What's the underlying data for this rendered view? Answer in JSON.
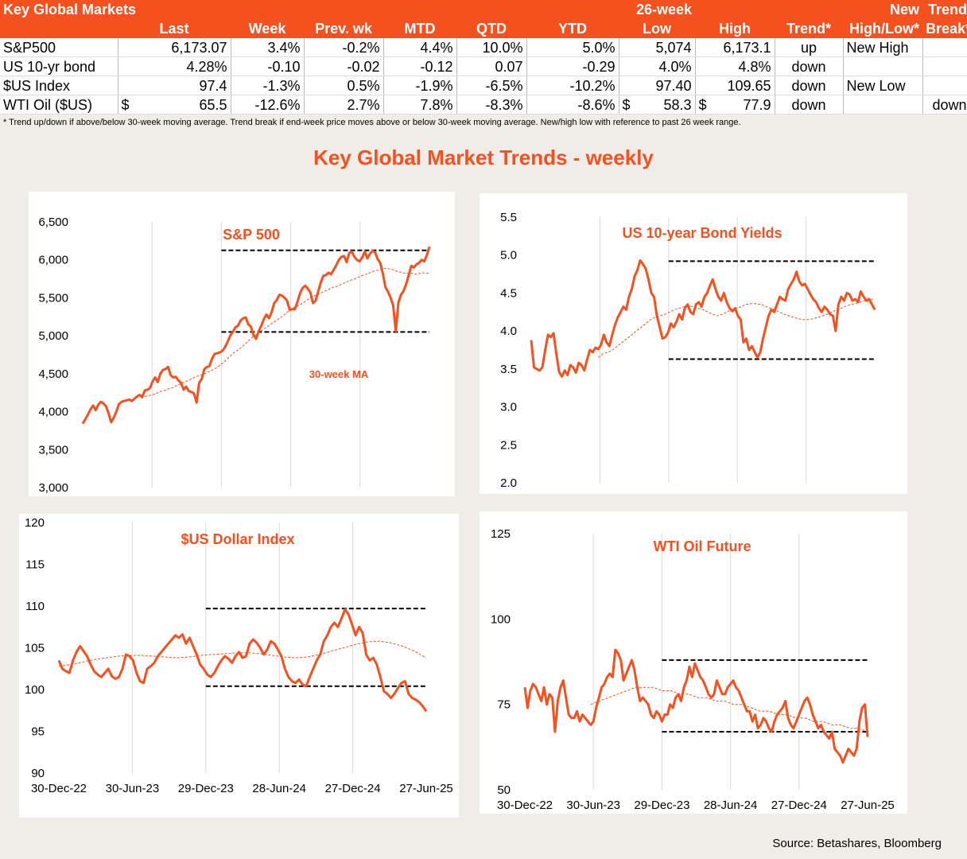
{
  "table": {
    "header_row1": [
      "Key Global Markets",
      "",
      "",
      "",
      "",
      "",
      "",
      "26-week",
      "",
      "",
      "New",
      "Trend"
    ],
    "header_row2": [
      "",
      "Last",
      "Week",
      "Prev. wk",
      "MTD",
      "QTD",
      "YTD",
      "Low",
      "High",
      "Trend*",
      "High/Low*",
      "Break*"
    ],
    "rows": [
      {
        "name": "S&P500",
        "cur_last": "",
        "last": "6,173.07",
        "week": "3.4%",
        "prev": "-0.2%",
        "mtd": "4.4%",
        "qtd": "10.0%",
        "ytd": "5.0%",
        "cur_low": "",
        "low": "5,074",
        "cur_high": "",
        "high": "6,173.1",
        "trend": "up",
        "hl": "New High",
        "brk": ""
      },
      {
        "name": "US 10-yr bond",
        "cur_last": "",
        "last": "4.28%",
        "week": "-0.10",
        "prev": "-0.02",
        "mtd": "-0.12",
        "qtd": "0.07",
        "ytd": "-0.29",
        "cur_low": "",
        "low": "4.0%",
        "cur_high": "",
        "high": "4.8%",
        "trend": "down",
        "hl": "",
        "brk": ""
      },
      {
        "name": "$US Index",
        "cur_last": "",
        "last": "97.4",
        "week": "-1.3%",
        "prev": "0.5%",
        "mtd": "-1.9%",
        "qtd": "-6.5%",
        "ytd": "-10.2%",
        "cur_low": "",
        "low": "97.40",
        "cur_high": "",
        "high": "109.65",
        "trend": "down",
        "hl": "New Low",
        "brk": ""
      },
      {
        "name": "WTI Oil ($US)",
        "cur_last": "$",
        "last": "65.5",
        "week": "-12.6%",
        "prev": "2.7%",
        "mtd": "7.8%",
        "qtd": "-8.3%",
        "ytd": "-8.6%",
        "cur_low": "$",
        "low": "58.3",
        "cur_high": "$",
        "high": "77.9",
        "trend": "down",
        "hl": "",
        "brk": "down"
      }
    ]
  },
  "footnote": "* Trend up/down if above/below 30-week moving average. Trend break if end-week price moves above or below 30-week moving average.  New/high low with reference to past 26 week range.",
  "main_title": "Key Global Market Trends - weekly",
  "source": "Source: Betashares, Bloomberg",
  "colors": {
    "accent": "#f4511e",
    "ma": "#f4511e",
    "band": "#000000"
  },
  "chart_data": [
    {
      "type": "line",
      "title": "S&P 500",
      "annotation": "30-week MA",
      "ylim": [
        3000,
        6500
      ],
      "yticks": [
        "3,000",
        "3,500",
        "4,000",
        "4,500",
        "5,000",
        "5,500",
        "6,000",
        "6,500"
      ],
      "xticks": [],
      "band": {
        "high": 6125,
        "low": 5050,
        "start": 0.4
      },
      "series": [
        {
          "values": [
            3840,
            3900,
            3960,
            4030,
            4080,
            4020,
            4090,
            4130,
            4110,
            4070,
            3980,
            3860,
            3920,
            4000,
            4100,
            4130,
            4140,
            4150,
            4160,
            4140,
            4170,
            4200,
            4220,
            4190,
            4280,
            4290,
            4310,
            4400,
            4450,
            4390,
            4500,
            4550,
            4560,
            4590,
            4480,
            4450,
            4460,
            4410,
            4380,
            4290,
            4330,
            4270,
            4260,
            4240,
            4120,
            4380,
            4430,
            4560,
            4590,
            4600,
            4700,
            4760,
            4770,
            4780,
            4800,
            4850,
            4920,
            5000,
            5050,
            5110,
            5130,
            5200,
            5230,
            5240,
            5150,
            5120,
            5010,
            4960,
            5060,
            5130,
            5220,
            5280,
            5230,
            5310,
            5430,
            5470,
            5540,
            5530,
            5500,
            5460,
            5340,
            5350,
            5350,
            5450,
            5560,
            5630,
            5660,
            5620,
            5570,
            5430,
            5460,
            5580,
            5700,
            5790,
            5800,
            5830,
            5810,
            5870,
            5930,
            6000,
            6040,
            6050,
            5970,
            6090,
            6110,
            6040,
            6000,
            5980,
            6030,
            6110,
            6020,
            6080,
            6120,
            6100,
            6010,
            5960,
            5820,
            5640,
            5580,
            5500,
            5400,
            5060,
            5440,
            5540,
            5590,
            5680,
            5800,
            5920,
            5900,
            5940,
            5960,
            6000,
            5980,
            6060,
            6173
          ]
        },
        {
          "values": [
            4200,
            4210,
            4220,
            4230,
            4250,
            4270,
            4280,
            4300,
            4310,
            4330,
            4350,
            4370,
            4390,
            4410,
            4430,
            4450,
            4470,
            4480,
            4500,
            4520,
            4540,
            4560,
            4590,
            4620,
            4660,
            4700,
            4740,
            4780,
            4810,
            4840,
            4880,
            4920,
            4960,
            5000,
            5030,
            5060,
            5090,
            5120,
            5150,
            5180,
            5210,
            5240,
            5270,
            5310,
            5340,
            5370,
            5390,
            5410,
            5440,
            5470,
            5500,
            5520,
            5540,
            5560,
            5580,
            5600,
            5620,
            5640,
            5650,
            5670,
            5690,
            5710,
            5730,
            5740,
            5760,
            5780,
            5800,
            5810,
            5830,
            5850,
            5860,
            5870,
            5880,
            5890,
            5880,
            5870,
            5850,
            5840,
            5830,
            5820,
            5830,
            5820,
            5810,
            5820,
            5830,
            5820,
            5830
          ],
          "start_index": 24
        }
      ]
    },
    {
      "type": "line",
      "title": "US 10-year Bond Yields",
      "ylim": [
        2.0,
        5.5
      ],
      "yticks": [
        "2.0",
        "2.5",
        "3.0",
        "3.5",
        "4.0",
        "4.5",
        "5.0",
        "5.5"
      ],
      "xticks": [],
      "band": {
        "high": 4.92,
        "low": 3.63,
        "start": 0.4
      },
      "series": [
        {
          "values": [
            3.88,
            3.52,
            3.5,
            3.48,
            3.52,
            3.75,
            3.95,
            3.92,
            3.97,
            3.7,
            3.46,
            3.4,
            3.48,
            3.42,
            3.55,
            3.52,
            3.45,
            3.58,
            3.55,
            3.48,
            3.62,
            3.75,
            3.72,
            3.78,
            3.76,
            3.82,
            3.95,
            3.85,
            3.8,
            3.95,
            4.08,
            4.18,
            4.25,
            4.32,
            4.28,
            4.45,
            4.55,
            4.72,
            4.8,
            4.93,
            4.88,
            4.82,
            4.68,
            4.5,
            4.45,
            4.2,
            4.05,
            3.9,
            3.92,
            3.98,
            4.1,
            4.05,
            4.12,
            4.22,
            4.15,
            4.3,
            4.35,
            4.25,
            4.22,
            4.35,
            4.38,
            4.32,
            4.45,
            4.5,
            4.6,
            4.68,
            4.55,
            4.45,
            4.4,
            4.5,
            4.38,
            4.3,
            4.26,
            4.3,
            4.2,
            4.15,
            3.85,
            3.9,
            3.75,
            3.8,
            3.72,
            3.65,
            3.72,
            3.9,
            4.05,
            4.2,
            4.28,
            4.25,
            4.35,
            4.45,
            4.42,
            4.4,
            4.55,
            4.62,
            4.68,
            4.78,
            4.65,
            4.6,
            4.62,
            4.55,
            4.48,
            4.42,
            4.38,
            4.3,
            4.25,
            4.32,
            4.28,
            4.22,
            4.2,
            4.0,
            4.35,
            4.45,
            4.4,
            4.5,
            4.48,
            4.4,
            4.42,
            4.38,
            4.52,
            4.45,
            4.4,
            4.42,
            4.35,
            4.28
          ]
        },
        {
          "values": [
            3.65,
            3.7,
            3.72,
            3.75,
            3.8,
            3.85,
            3.9,
            3.95,
            4.0,
            4.05,
            4.1,
            4.15,
            4.18,
            4.2,
            4.22,
            4.25,
            4.28,
            4.3,
            4.32,
            4.33,
            4.32,
            4.3,
            4.28,
            4.25,
            4.22,
            4.2,
            4.22,
            4.25,
            4.28,
            4.3,
            4.32,
            4.35,
            4.36,
            4.36,
            4.35,
            4.33,
            4.3,
            4.28,
            4.25,
            4.22,
            4.2,
            4.18,
            4.16,
            4.15,
            4.15,
            4.16,
            4.18,
            4.2,
            4.22,
            4.25,
            4.28,
            4.3,
            4.33,
            4.35,
            4.36,
            4.38,
            4.4,
            4.42,
            4.42
          ],
          "start_index": 24
        }
      ]
    },
    {
      "type": "line",
      "title": "$US Dollar Index",
      "ylim": [
        90,
        120
      ],
      "yticks": [
        "90",
        "95",
        "100",
        "105",
        "110",
        "115",
        "120"
      ],
      "xticks": [
        "30-Dec-22",
        "30-Jun-23",
        "29-Dec-23",
        "28-Jun-24",
        "27-Dec-24",
        "27-Jun-25"
      ],
      "band": {
        "high": 109.7,
        "low": 100.4,
        "start": 0.4
      },
      "series": [
        {
          "values": [
            103.5,
            102.5,
            102.2,
            102.0,
            103.5,
            104.5,
            105.2,
            104.6,
            104.0,
            103.0,
            102.2,
            101.8,
            101.5,
            102.0,
            102.5,
            101.6,
            101.3,
            101.5,
            102.5,
            104.2,
            104.0,
            103.5,
            102.0,
            101.0,
            100.8,
            102.5,
            102.8,
            103.2,
            104.0,
            104.5,
            105.0,
            105.5,
            106.0,
            106.5,
            106.2,
            106.6,
            105.5,
            106.2,
            105.2,
            104.2,
            103.0,
            102.5,
            101.8,
            101.5,
            102.0,
            102.8,
            103.5,
            104.0,
            103.7,
            103.2,
            104.0,
            104.5,
            103.8,
            104.0,
            105.5,
            106.0,
            105.6,
            105.0,
            104.2,
            104.8,
            105.8,
            105.5,
            104.8,
            104.0,
            102.5,
            101.5,
            101.0,
            100.8,
            101.2,
            100.6,
            100.4,
            101.5,
            102.5,
            103.5,
            104.2,
            105.8,
            106.5,
            107.5,
            108.0,
            107.5,
            108.5,
            109.6,
            109.0,
            107.8,
            106.5,
            107.5,
            106.8,
            104.2,
            103.5,
            103.8,
            103.0,
            101.5,
            99.8,
            99.5,
            99.0,
            99.5,
            100.2,
            100.8,
            101.0,
            99.5,
            99.0,
            98.8,
            98.5,
            98.0,
            97.4
          ]
        },
        {
          "values": [
            102.8,
            103.0,
            103.3,
            103.6,
            103.8,
            104.0,
            104.1,
            104.1,
            104.0,
            103.9,
            103.8,
            103.9,
            104.1,
            104.2,
            104.3,
            104.4,
            104.4,
            104.3,
            104.1,
            103.9,
            103.8,
            103.9,
            104.2,
            104.6,
            105.0,
            105.4,
            105.7,
            105.8,
            105.6,
            105.2,
            104.6,
            103.8
          ]
        },
        {
          "values": [],
          "start_index": 24
        }
      ]
    },
    {
      "type": "line",
      "title": "WTI Oil Future",
      "ylim": [
        50,
        125
      ],
      "yticks": [
        "50",
        "75",
        "100",
        "125"
      ],
      "xticks": [
        "30-Dec-22",
        "30-Jun-23",
        "29-Dec-23",
        "28-Jun-24",
        "27-Dec-24",
        "27-Jun-25"
      ],
      "band": {
        "high": 88,
        "low": 67,
        "start": 0.4
      },
      "series": [
        {
          "values": [
            80,
            74,
            79,
            81,
            80,
            78,
            76,
            80,
            75,
            78,
            77,
            67,
            76,
            80,
            82,
            77,
            72,
            71,
            71,
            73,
            70,
            72,
            71,
            70,
            69,
            70,
            74,
            77,
            80,
            81,
            83,
            84,
            83,
            91,
            90,
            88,
            82,
            84,
            86,
            88,
            85,
            80,
            76,
            77,
            76,
            75,
            72,
            71,
            73,
            72,
            70,
            72,
            72,
            75,
            74,
            77,
            78,
            76,
            80,
            82,
            86,
            83,
            87,
            85,
            83,
            82,
            80,
            78,
            77,
            78,
            82,
            80,
            78,
            78,
            80,
            81,
            82,
            80,
            79,
            77,
            75,
            73,
            73,
            70,
            72,
            68,
            69,
            71,
            70,
            68,
            67,
            70,
            72,
            73,
            74,
            76,
            71,
            69,
            68,
            70,
            72,
            74,
            76,
            77,
            75,
            72,
            70,
            68,
            69,
            67,
            66,
            65,
            67,
            62,
            61,
            60,
            58,
            60,
            62,
            61,
            60,
            62,
            70,
            74,
            75,
            65.5
          ]
        },
        {
          "values": [
            75,
            76,
            77,
            78,
            79,
            80,
            80,
            80,
            79,
            79,
            78,
            78,
            77,
            77,
            76,
            76,
            75,
            75,
            74,
            73,
            73,
            72,
            72,
            71,
            71,
            70,
            70,
            69,
            69,
            68,
            68,
            67
          ],
          "start_index": 24
        }
      ]
    }
  ],
  "panels": {
    "sp500": {
      "title": "S&P 500",
      "annotation": "30-week MA"
    },
    "bond": {
      "title": "US 10-year Bond Yields"
    },
    "dxy": {
      "title": "$US Dollar Index"
    },
    "oil": {
      "title": "WTI Oil Future"
    }
  }
}
